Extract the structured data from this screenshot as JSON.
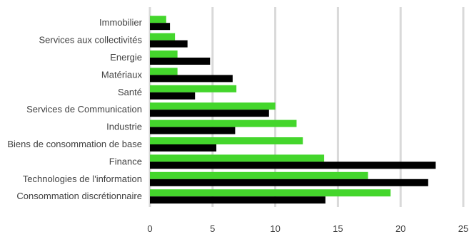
{
  "chart_data": {
    "type": "bar",
    "orientation": "horizontal",
    "categories": [
      "Immobilier",
      "Services aux collectivités",
      "Energie",
      "Matériaux",
      "Santé",
      "Services de Communication",
      "Industrie",
      "Biens de consommation de base",
      "Finance",
      "Technologies de l'information",
      "Consommation discrétionnaire"
    ],
    "series": [
      {
        "color": "#44d62c",
        "values": [
          1.3,
          2.0,
          2.2,
          2.2,
          6.9,
          10.0,
          11.7,
          12.2,
          13.9,
          17.4,
          19.2
        ]
      },
      {
        "color": "#000000",
        "values": [
          1.6,
          3.0,
          4.8,
          6.6,
          3.6,
          9.5,
          6.8,
          5.3,
          22.8,
          22.2,
          14.0
        ]
      }
    ],
    "xticks": [
      "0",
      "5",
      "10",
      "15",
      "20",
      "25"
    ],
    "xlim": [
      0,
      25
    ],
    "grid": true,
    "title": "",
    "xlabel": "",
    "ylabel": ""
  }
}
